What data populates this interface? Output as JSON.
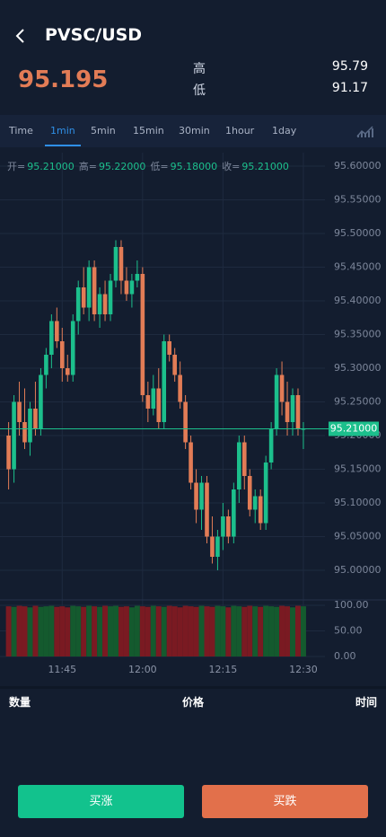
{
  "header": {
    "title": "PVSC/USD"
  },
  "quote": {
    "last": "95.195",
    "high_label": "高",
    "high": "95.79",
    "low_label": "低",
    "low": "91.17"
  },
  "tabs": [
    "Time",
    "1min",
    "5min",
    "15min",
    "30min",
    "1hour",
    "1day"
  ],
  "active_tab": 1,
  "chart_data": {
    "type": "candlestick",
    "ohlc_info": [
      {
        "label": "开=",
        "value": "95.21000"
      },
      {
        "label": "高=",
        "value": "95.22000"
      },
      {
        "label": "低=",
        "value": "95.18000"
      },
      {
        "label": "收=",
        "value": "95.21000"
      }
    ],
    "categories": [
      null,
      null,
      null,
      null,
      null,
      null,
      null,
      null,
      null,
      null,
      "11:45",
      null,
      null,
      null,
      null,
      null,
      null,
      null,
      null,
      null,
      null,
      null,
      null,
      null,
      null,
      "12:00",
      null,
      null,
      null,
      null,
      null,
      null,
      null,
      null,
      null,
      null,
      null,
      null,
      null,
      null,
      "12:15",
      null,
      null,
      null,
      null,
      null,
      null,
      null,
      null,
      null,
      null,
      null,
      null,
      null,
      null,
      "12:30"
    ],
    "open": [
      95.2,
      95.15,
      95.25,
      95.22,
      95.19,
      95.24,
      95.21,
      95.29,
      95.32,
      95.37,
      95.34,
      95.3,
      95.29,
      95.37,
      95.42,
      95.39,
      95.45,
      95.38,
      95.41,
      95.38,
      95.43,
      95.48,
      95.43,
      95.41,
      95.43,
      95.44,
      95.26,
      95.24,
      95.27,
      95.22,
      95.34,
      95.32,
      95.29,
      95.25,
      95.19,
      95.13,
      95.09,
      95.13,
      95.05,
      95.02,
      95.05,
      95.08,
      95.05,
      95.12,
      95.19,
      95.14,
      95.09,
      95.11,
      95.07,
      95.16,
      95.21,
      95.29,
      95.25,
      95.22,
      95.26,
      95.21
    ],
    "high": [
      95.22,
      95.26,
      95.28,
      95.27,
      95.25,
      95.28,
      95.3,
      95.33,
      95.38,
      95.39,
      95.36,
      95.32,
      95.38,
      95.43,
      95.45,
      95.46,
      95.46,
      95.42,
      95.43,
      95.44,
      95.49,
      95.49,
      95.45,
      95.44,
      95.46,
      95.45,
      95.28,
      95.29,
      95.3,
      95.35,
      95.35,
      95.33,
      95.31,
      95.26,
      95.2,
      95.15,
      95.14,
      95.14,
      95.08,
      95.06,
      95.1,
      95.09,
      95.13,
      95.2,
      95.2,
      95.15,
      95.12,
      95.12,
      95.17,
      95.22,
      95.3,
      95.31,
      95.28,
      95.27,
      95.27,
      95.22
    ],
    "low": [
      95.12,
      95.13,
      95.2,
      95.18,
      95.17,
      95.2,
      95.2,
      95.27,
      95.3,
      95.33,
      95.28,
      95.28,
      95.28,
      95.35,
      95.38,
      95.37,
      95.37,
      95.36,
      95.37,
      95.37,
      95.42,
      95.41,
      95.4,
      95.39,
      95.42,
      95.25,
      95.22,
      95.23,
      95.21,
      95.21,
      95.31,
      95.28,
      95.24,
      95.18,
      95.12,
      95.07,
      95.06,
      95.04,
      95.01,
      95.0,
      95.03,
      95.04,
      95.04,
      95.1,
      95.12,
      95.08,
      95.07,
      95.06,
      95.06,
      95.15,
      95.2,
      95.23,
      95.2,
      95.2,
      95.2,
      95.18
    ],
    "close": [
      95.15,
      95.25,
      95.22,
      95.19,
      95.24,
      95.21,
      95.29,
      95.32,
      95.37,
      95.34,
      95.3,
      95.29,
      95.37,
      95.42,
      95.39,
      95.45,
      95.38,
      95.41,
      95.38,
      95.43,
      95.48,
      95.43,
      95.41,
      95.43,
      95.44,
      95.26,
      95.24,
      95.27,
      95.22,
      95.34,
      95.32,
      95.29,
      95.25,
      95.19,
      95.13,
      95.09,
      95.13,
      95.05,
      95.02,
      95.05,
      95.08,
      95.05,
      95.12,
      95.19,
      95.14,
      95.09,
      95.11,
      95.07,
      95.16,
      95.21,
      95.29,
      95.25,
      95.22,
      95.26,
      95.21,
      95.21
    ],
    "colors": {
      "up": "#1cbf8c",
      "down": "#e27c56"
    },
    "ylim": [
      94.96,
      95.62
    ],
    "yticks": [
      {
        "value": 95.0,
        "label": "95.00000"
      },
      {
        "value": 95.05,
        "label": "95.05000"
      },
      {
        "value": 95.1,
        "label": "95.10000"
      },
      {
        "value": 95.15,
        "label": "95.15000"
      },
      {
        "value": 95.2,
        "label": "95.20000"
      },
      {
        "value": 95.25,
        "label": "95.25000"
      },
      {
        "value": 95.3,
        "label": "95.30000"
      },
      {
        "value": 95.35,
        "label": "95.35000"
      },
      {
        "value": 95.4,
        "label": "95.40000"
      },
      {
        "value": 95.45,
        "label": "95.45000"
      },
      {
        "value": 95.5,
        "label": "95.50000"
      },
      {
        "value": 95.55,
        "label": "95.55000"
      },
      {
        "value": 95.6,
        "label": "95.60000"
      }
    ],
    "last": {
      "value": 95.21,
      "label": "95.21000"
    },
    "grid": true,
    "volume": {
      "values": [
        98,
        97,
        99,
        98,
        96,
        99,
        97,
        98,
        99,
        97,
        98,
        96,
        99,
        98,
        97,
        99,
        98,
        97,
        99,
        98,
        99,
        97,
        98,
        96,
        99,
        98,
        97,
        99,
        98,
        97,
        99,
        98,
        96,
        99,
        98,
        97,
        99,
        98,
        97,
        99,
        98,
        96,
        99,
        98,
        97,
        99,
        98,
        97,
        99,
        98,
        97,
        99,
        98,
        96,
        99,
        98
      ],
      "ylim": [
        0,
        100
      ],
      "yticks": [
        {
          "value": 0,
          "label": "0.00"
        },
        {
          "value": 50,
          "label": "50.00"
        },
        {
          "value": 100,
          "label": "100.00"
        }
      ]
    }
  },
  "trades": {
    "columns": [
      "数量",
      "价格",
      "时间"
    ]
  },
  "buttons": {
    "buy": "买涨",
    "sell": "买跌"
  }
}
